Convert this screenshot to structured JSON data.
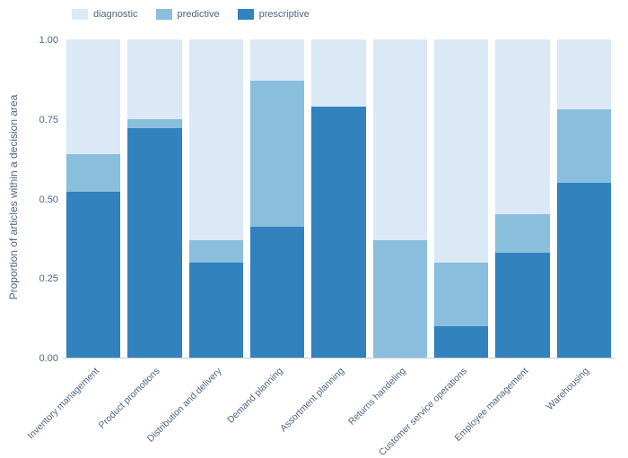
{
  "chart": {
    "type": "stacked-bar",
    "ylabel": "Proportion of articles within a decision area",
    "ylim": [
      0,
      1.0
    ],
    "yticks": [
      0.0,
      0.25,
      0.5,
      0.75,
      1.0
    ],
    "ytick_labels": [
      "0.00",
      "0.25",
      "0.50",
      "0.75",
      "1.00"
    ],
    "background_color": "#ffffff",
    "bar_width_ratio": 0.88,
    "xlabel_rotation_deg": -45,
    "xlabel_fontsize": 10.5,
    "ylabel_fontsize": 12,
    "ytick_fontsize": 11,
    "legend_fontsize": 11,
    "axis_text_color": "#506784",
    "legend": [
      {
        "key": "diagnostic",
        "label": "diagnostic",
        "color": "#dbe9f6"
      },
      {
        "key": "predictive",
        "label": "predictive",
        "color": "#89bedc"
      },
      {
        "key": "prescriptive",
        "label": "prescriptive",
        "color": "#3182bd"
      }
    ],
    "categories": [
      {
        "label": "Inventory management",
        "prescriptive": 0.52,
        "predictive": 0.12,
        "diagnostic": 0.36
      },
      {
        "label": "Product promotions",
        "prescriptive": 0.72,
        "predictive": 0.03,
        "diagnostic": 0.25
      },
      {
        "label": "Distribution and delivery",
        "prescriptive": 0.3,
        "predictive": 0.07,
        "diagnostic": 0.63
      },
      {
        "label": "Demand planning",
        "prescriptive": 0.41,
        "predictive": 0.46,
        "diagnostic": 0.13
      },
      {
        "label": "Assortment planning",
        "prescriptive": 0.79,
        "predictive": 0.0,
        "diagnostic": 0.21
      },
      {
        "label": "Returns handeling",
        "prescriptive": 0.0,
        "predictive": 0.37,
        "diagnostic": 0.63
      },
      {
        "label": "Customer service operations",
        "prescriptive": 0.1,
        "predictive": 0.2,
        "diagnostic": 0.7
      },
      {
        "label": "Employee management",
        "prescriptive": 0.33,
        "predictive": 0.12,
        "diagnostic": 0.55
      },
      {
        "label": "Warehousing",
        "prescriptive": 0.55,
        "predictive": 0.23,
        "diagnostic": 0.22
      }
    ]
  }
}
